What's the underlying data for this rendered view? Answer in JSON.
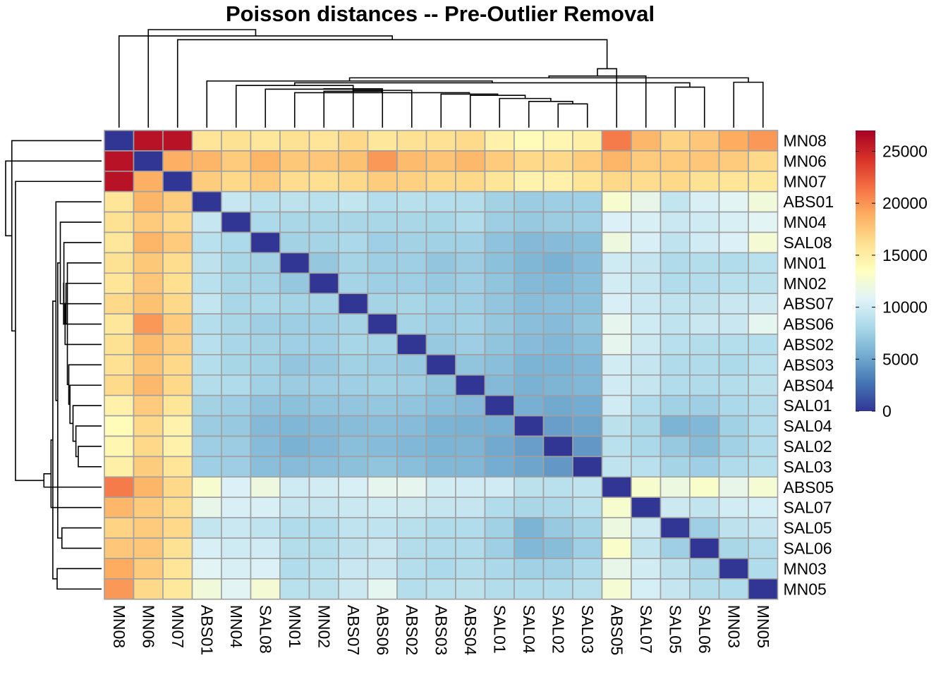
{
  "chart_data": {
    "type": "heatmap",
    "title": "Poisson distances -- Pre-Outlier Removal",
    "labels": [
      "MN08",
      "MN06",
      "MN07",
      "ABS01",
      "MN04",
      "SAL08",
      "MN01",
      "MN02",
      "ABS07",
      "ABS06",
      "ABS02",
      "ABS03",
      "ABS04",
      "SAL01",
      "SAL04",
      "SAL02",
      "SAL03",
      "ABS05",
      "SAL07",
      "SAL05",
      "SAL06",
      "MN03",
      "MN05"
    ],
    "matrix": [
      [
        0,
        26000,
        26000,
        15800,
        16000,
        15600,
        16000,
        15800,
        16600,
        15600,
        16000,
        16100,
        16500,
        14700,
        13800,
        14300,
        14800,
        21000,
        18400,
        16900,
        17600,
        19000,
        19800
      ],
      [
        26000,
        0,
        18800,
        18500,
        17400,
        18500,
        17500,
        17600,
        17900,
        19800,
        18200,
        17700,
        18300,
        17400,
        16600,
        16600,
        17300,
        18500,
        17400,
        17400,
        17600,
        17400,
        16600
      ],
      [
        26000,
        18800,
        0,
        17300,
        16600,
        17400,
        16300,
        16200,
        16600,
        17300,
        17000,
        16600,
        16600,
        15700,
        14600,
        14700,
        15800,
        16600,
        16300,
        16600,
        16000,
        15800,
        15500
      ],
      [
        15800,
        18500,
        17300,
        0,
        9500,
        8800,
        9000,
        8800,
        9300,
        8600,
        8700,
        8600,
        8500,
        7700,
        7300,
        7400,
        7500,
        12800,
        11500,
        9300,
        10400,
        11000,
        12200
      ],
      [
        16000,
        17400,
        16600,
        9500,
        0,
        8200,
        8000,
        8000,
        8000,
        8000,
        8000,
        7900,
        8300,
        7400,
        7100,
        7300,
        7400,
        10600,
        10400,
        9700,
        9900,
        10400,
        11000
      ],
      [
        15600,
        18500,
        17400,
        8800,
        8200,
        0,
        7700,
        7800,
        8100,
        7500,
        7700,
        7600,
        7600,
        6700,
        6200,
        6300,
        6500,
        12000,
        10400,
        9100,
        10000,
        10600,
        12500
      ],
      [
        16000,
        17500,
        16300,
        9000,
        8000,
        7700,
        0,
        7000,
        7800,
        7400,
        7500,
        6900,
        7300,
        6600,
        6000,
        5700,
        6300,
        9900,
        9400,
        8300,
        8500,
        8400,
        8800
      ],
      [
        15800,
        17600,
        16200,
        8800,
        8000,
        7800,
        7000,
        0,
        7800,
        7500,
        7500,
        7100,
        7400,
        6800,
        6200,
        6100,
        6500,
        10100,
        9400,
        8400,
        8500,
        8800,
        8900
      ],
      [
        16600,
        17900,
        16600,
        9300,
        8000,
        8100,
        7800,
        7800,
        0,
        7800,
        7900,
        7600,
        7500,
        6900,
        6400,
        6500,
        6600,
        10400,
        9700,
        9100,
        9000,
        9600,
        9800
      ],
      [
        15600,
        19800,
        17300,
        8600,
        8000,
        7500,
        7400,
        7500,
        7800,
        0,
        7800,
        7400,
        7600,
        7000,
        6500,
        6300,
        6800,
        11300,
        9900,
        9100,
        9600,
        9600,
        11200
      ],
      [
        16000,
        18200,
        17000,
        8700,
        8000,
        7700,
        7500,
        7500,
        7900,
        7800,
        0,
        7100,
        7400,
        6800,
        6300,
        6100,
        6500,
        11300,
        9800,
        8700,
        8500,
        8600,
        8600
      ],
      [
        16100,
        17700,
        16600,
        8600,
        7900,
        7600,
        6900,
        7100,
        7600,
        7400,
        7100,
        0,
        6800,
        6500,
        5800,
        5800,
        6100,
        10100,
        9400,
        8300,
        8300,
        8200,
        8800
      ],
      [
        16500,
        18300,
        16600,
        8500,
        8300,
        7600,
        7300,
        7400,
        7500,
        7600,
        7400,
        6800,
        0,
        6200,
        5700,
        5900,
        6100,
        10000,
        9400,
        8400,
        8300,
        8500,
        8900
      ],
      [
        14700,
        17400,
        15700,
        7700,
        7400,
        6700,
        6600,
        6800,
        6900,
        7000,
        6800,
        6500,
        6200,
        0,
        5600,
        5200,
        5400,
        10000,
        8400,
        7600,
        7500,
        8100,
        8500
      ],
      [
        13800,
        16600,
        14600,
        7300,
        7100,
        6200,
        6000,
        6200,
        6400,
        6500,
        6300,
        5800,
        5700,
        5600,
        0,
        4700,
        5000,
        8900,
        8000,
        5800,
        6100,
        7600,
        8400
      ],
      [
        14300,
        16600,
        14700,
        7400,
        7300,
        6300,
        5700,
        6100,
        6500,
        6300,
        6100,
        5800,
        5900,
        5200,
        4700,
        0,
        4400,
        8800,
        8100,
        7100,
        6400,
        7600,
        8400
      ],
      [
        14800,
        17300,
        15800,
        7500,
        7400,
        6500,
        6300,
        6500,
        6600,
        6800,
        6500,
        6100,
        6100,
        5400,
        5000,
        4400,
        0,
        9100,
        8800,
        7800,
        7500,
        8300,
        8700
      ],
      [
        21000,
        18500,
        16600,
        12800,
        10600,
        12000,
        9900,
        10100,
        10400,
        11300,
        11300,
        10100,
        10000,
        10000,
        8900,
        8800,
        9100,
        0,
        12800,
        11900,
        13000,
        11500,
        12600
      ],
      [
        18400,
        17400,
        16300,
        11500,
        10400,
        10400,
        9400,
        9400,
        9700,
        9900,
        9800,
        9400,
        9400,
        8400,
        8000,
        8100,
        8800,
        12800,
        0,
        9800,
        9200,
        10100,
        10300
      ],
      [
        16900,
        17400,
        16600,
        9300,
        9700,
        9100,
        8300,
        8400,
        9100,
        9100,
        8700,
        8300,
        8400,
        7600,
        5800,
        7100,
        7800,
        11900,
        9800,
        0,
        7500,
        9000,
        9400
      ],
      [
        17600,
        17600,
        16000,
        10400,
        9900,
        10000,
        8500,
        8500,
        9000,
        9600,
        8500,
        8300,
        8300,
        7500,
        6100,
        6400,
        7500,
        13000,
        9200,
        7500,
        0,
        8000,
        8500
      ],
      [
        19000,
        17400,
        15800,
        11000,
        10400,
        10600,
        8400,
        8800,
        9600,
        9600,
        8600,
        8200,
        8500,
        8100,
        7600,
        7600,
        8300,
        11500,
        10100,
        9000,
        8000,
        0,
        8400
      ],
      [
        19800,
        16600,
        15500,
        12200,
        11000,
        12500,
        8800,
        8900,
        9800,
        11200,
        8600,
        8800,
        8900,
        8500,
        8400,
        8400,
        8700,
        12600,
        10300,
        9400,
        8500,
        8400,
        0
      ]
    ],
    "col_dendrogram": {
      "merges": [
        [
          -1,
          -2
        ],
        [
          -22,
          -23
        ],
        [
          -20,
          -21
        ],
        [
          -15,
          -16
        ],
        [
          -7,
          -8
        ],
        [
          -14,
          -4
        ],
        [
          -9,
          -10
        ],
        [
          -11,
          -12
        ],
        [
          -5,
          -6
        ],
        [
          -13,
          -14
        ],
        [
          -18,
          -19
        ],
        [
          -17,
          4
        ],
        [
          -20,
          -21
        ],
        [
          -3,
          -4
        ],
        [
          -5,
          -6
        ],
        [
          -2,
          -3
        ],
        [
          -1,
          -2
        ],
        [
          -1,
          -2
        ],
        [
          -1,
          -2
        ],
        [
          -1,
          -2
        ],
        [
          -1,
          -2
        ],
        [
          -1,
          -2
        ]
      ]
    },
    "legend": {
      "min": 0,
      "max": 27000,
      "ticks": [
        0,
        5000,
        10000,
        15000,
        20000,
        25000
      ],
      "tick_labels": [
        "0",
        "5000",
        "10000",
        "15000",
        "20000",
        "25000"
      ],
      "colors": [
        "#313695",
        "#4575b4",
        "#74add1",
        "#abd9e9",
        "#e0f3f8",
        "#ffffbf",
        "#fee090",
        "#fdae61",
        "#f46d43",
        "#d73027",
        "#a50026"
      ]
    },
    "cell_border": "#a0a0a0"
  }
}
